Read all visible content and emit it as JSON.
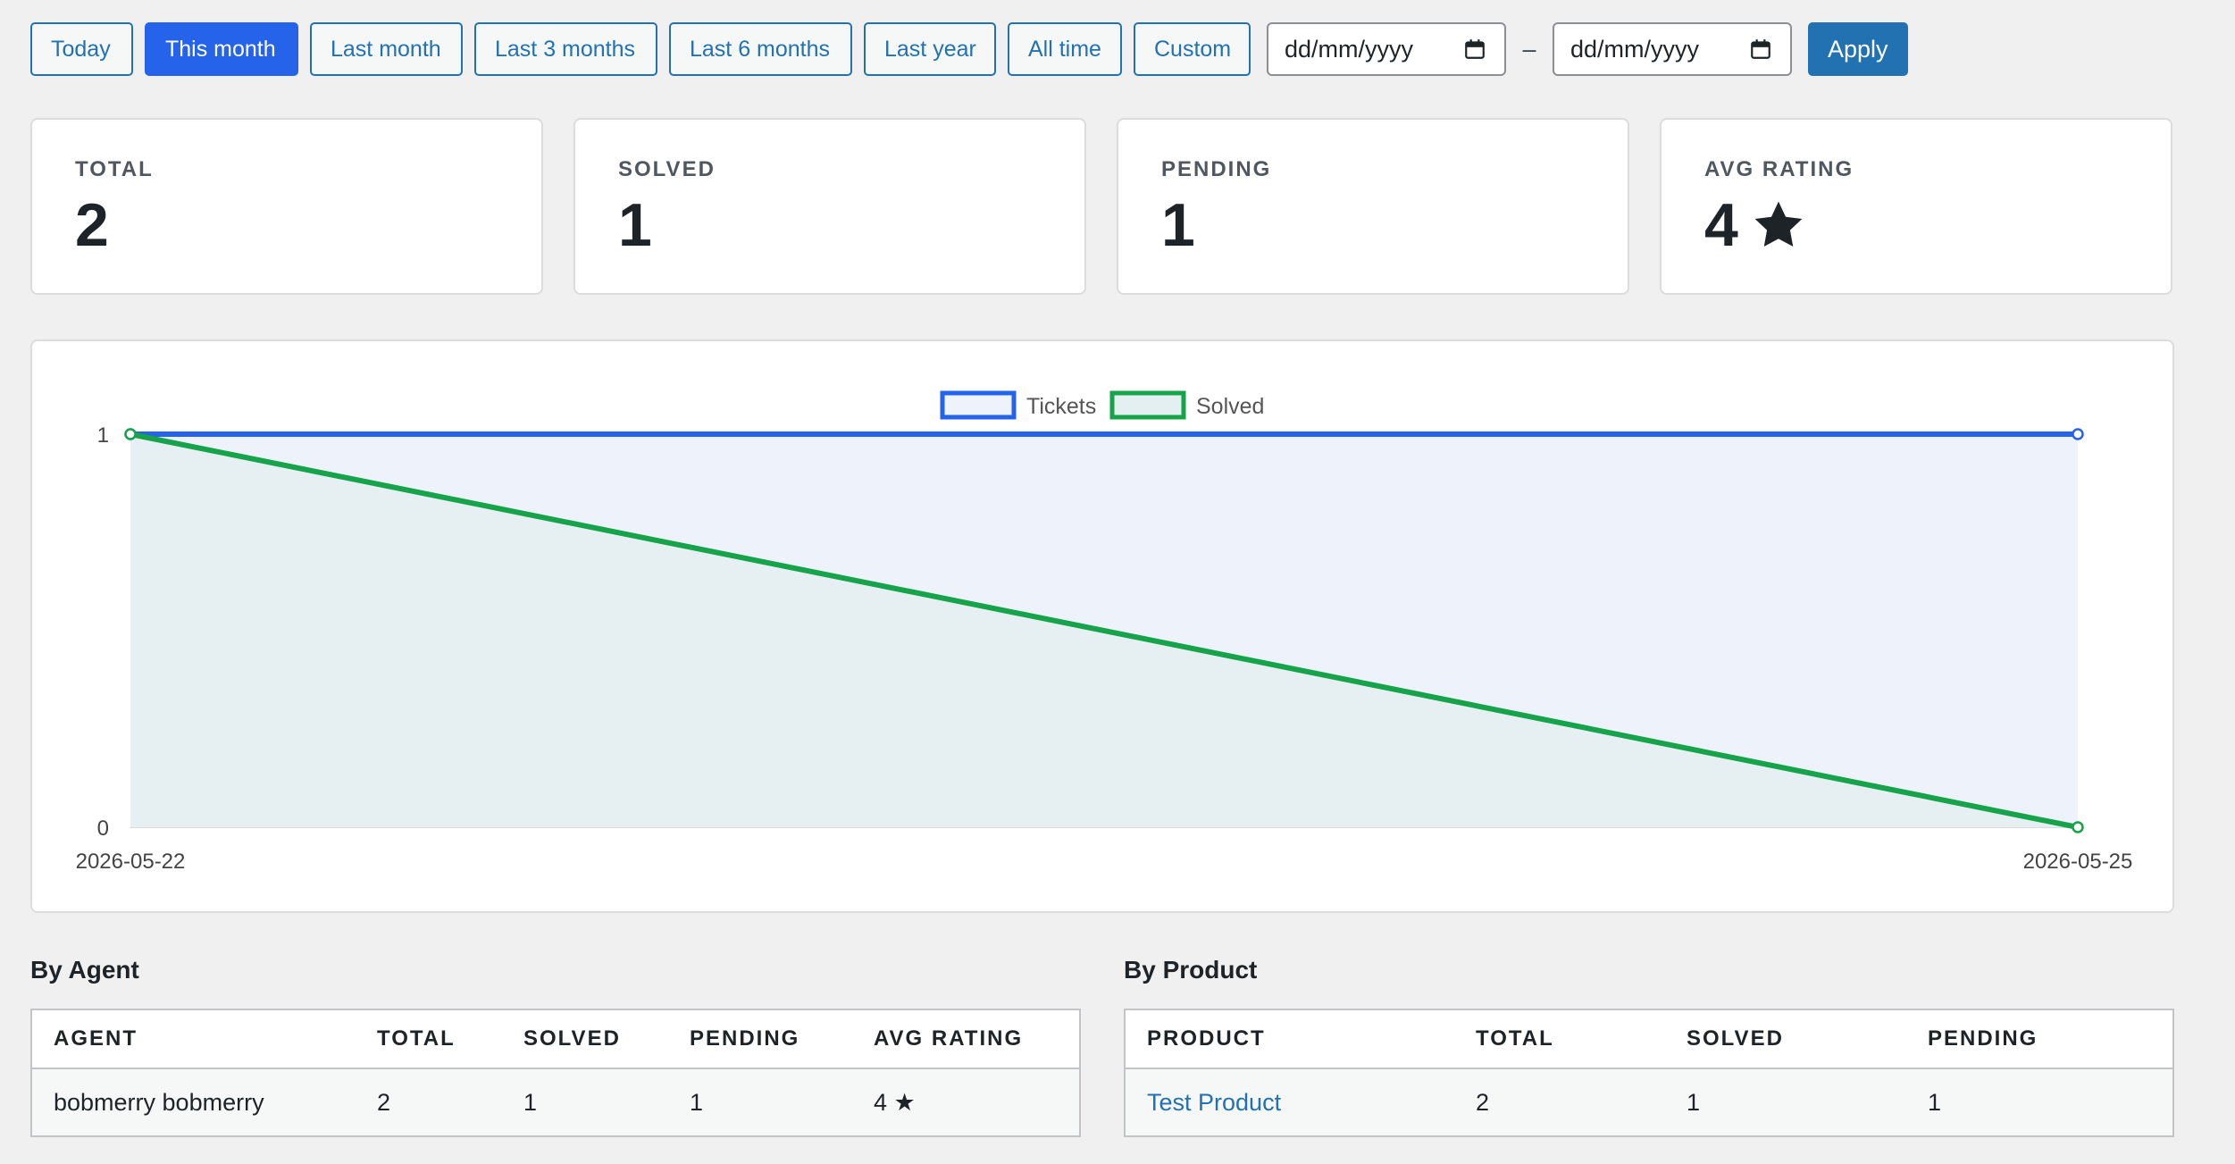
{
  "filters": {
    "presets": [
      {
        "label": "Today",
        "active": false
      },
      {
        "label": "This month",
        "active": true
      },
      {
        "label": "Last month",
        "active": false
      },
      {
        "label": "Last 3 months",
        "active": false
      },
      {
        "label": "Last 6 months",
        "active": false
      },
      {
        "label": "Last year",
        "active": false
      },
      {
        "label": "All time",
        "active": false
      },
      {
        "label": "Custom",
        "active": false
      }
    ],
    "date_from_placeholder": "dd/mm/yyyy",
    "date_separator": "–",
    "date_to_placeholder": "dd/mm/yyyy",
    "apply_label": "Apply"
  },
  "stats": {
    "total": {
      "label": "TOTAL",
      "value": "2"
    },
    "solved": {
      "label": "SOLVED",
      "value": "1"
    },
    "pending": {
      "label": "PENDING",
      "value": "1"
    },
    "avg_rating": {
      "label": "AVG RATING",
      "value": "4",
      "icon": "star-icon"
    }
  },
  "chart_data": {
    "type": "line",
    "x": [
      "2026-05-22",
      "2026-05-25"
    ],
    "series": [
      {
        "name": "Tickets",
        "values": [
          1,
          1
        ],
        "color": "#2563eb",
        "fill": "#eef2fb"
      },
      {
        "name": "Solved",
        "values": [
          1,
          0
        ],
        "color": "#16a34a",
        "fill": "#e3eff0"
      }
    ],
    "ylim": [
      0,
      1
    ],
    "yticks": [
      "0",
      "1"
    ],
    "legend": "top-center",
    "title": "",
    "xlabel": "",
    "ylabel": ""
  },
  "by_agent": {
    "title": "By Agent",
    "columns": [
      "AGENT",
      "TOTAL",
      "SOLVED",
      "PENDING",
      "AVG RATING"
    ],
    "rows": [
      {
        "agent": "bobmerry bobmerry",
        "total": "2",
        "solved": "1",
        "pending": "1",
        "avg_rating": "4 ★"
      }
    ]
  },
  "by_product": {
    "title": "By Product",
    "columns": [
      "PRODUCT",
      "TOTAL",
      "SOLVED",
      "PENDING"
    ],
    "rows": [
      {
        "product": "Test Product",
        "total": "2",
        "solved": "1",
        "pending": "1"
      }
    ]
  },
  "colors": {
    "accent": "#2271b1",
    "active_filter": "#2563eb",
    "tickets_line": "#2563eb",
    "solved_line": "#16a34a",
    "background": "#f0f0f1"
  }
}
